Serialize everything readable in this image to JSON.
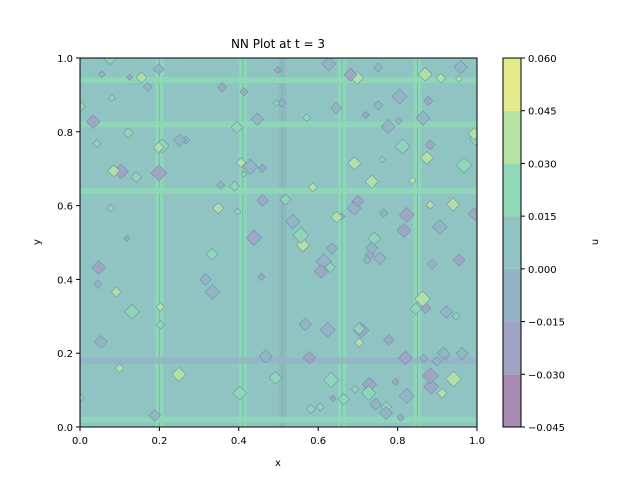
{
  "chart_data": {
    "type": "contourf",
    "title": "NN Plot at t = 3",
    "xlabel": "x",
    "ylabel": "y",
    "xlim": [
      0.0,
      1.0
    ],
    "ylim": [
      0.0,
      1.0
    ],
    "xticks": [
      "0.0",
      "0.2",
      "0.4",
      "0.6",
      "0.8",
      "1.0"
    ],
    "yticks": [
      "0.0",
      "0.2",
      "0.4",
      "0.6",
      "0.8",
      "1.0"
    ],
    "colorbar": {
      "label": "u",
      "levels": [
        -0.045,
        -0.03,
        -0.015,
        0.0,
        0.015,
        0.03,
        0.045,
        0.06
      ],
      "tick_labels": [
        "−0.045",
        "−0.030",
        "−0.015",
        "0.000",
        "0.015",
        "0.030",
        "0.045",
        "0.060"
      ],
      "colors": [
        "#a78bb2",
        "#a1a3c4",
        "#95b3c6",
        "#8fc4c2",
        "#8fd8b8",
        "#b6e3a4",
        "#e4ea8a"
      ]
    },
    "background_band": [
      0.0,
      0.015
    ],
    "vertical_streaks": [
      {
        "x": 0.2,
        "band": [
          0.015,
          0.03
        ]
      },
      {
        "x": 0.41,
        "band": [
          0.015,
          0.03
        ]
      },
      {
        "x": 0.51,
        "band": [
          -0.015,
          0.0
        ]
      },
      {
        "x": 0.66,
        "band": [
          0.015,
          0.03
        ]
      },
      {
        "x": 0.85,
        "band": [
          0.015,
          0.03
        ]
      }
    ],
    "horizontal_streaks": [
      {
        "y": 0.02,
        "band": [
          0.015,
          0.03
        ]
      },
      {
        "y": 0.18,
        "band": [
          -0.015,
          0.0
        ]
      },
      {
        "y": 0.64,
        "band": [
          0.015,
          0.03
        ]
      },
      {
        "y": 0.82,
        "band": [
          0.015,
          0.03
        ]
      },
      {
        "y": 0.94,
        "band": [
          0.015,
          0.03
        ]
      }
    ]
  }
}
